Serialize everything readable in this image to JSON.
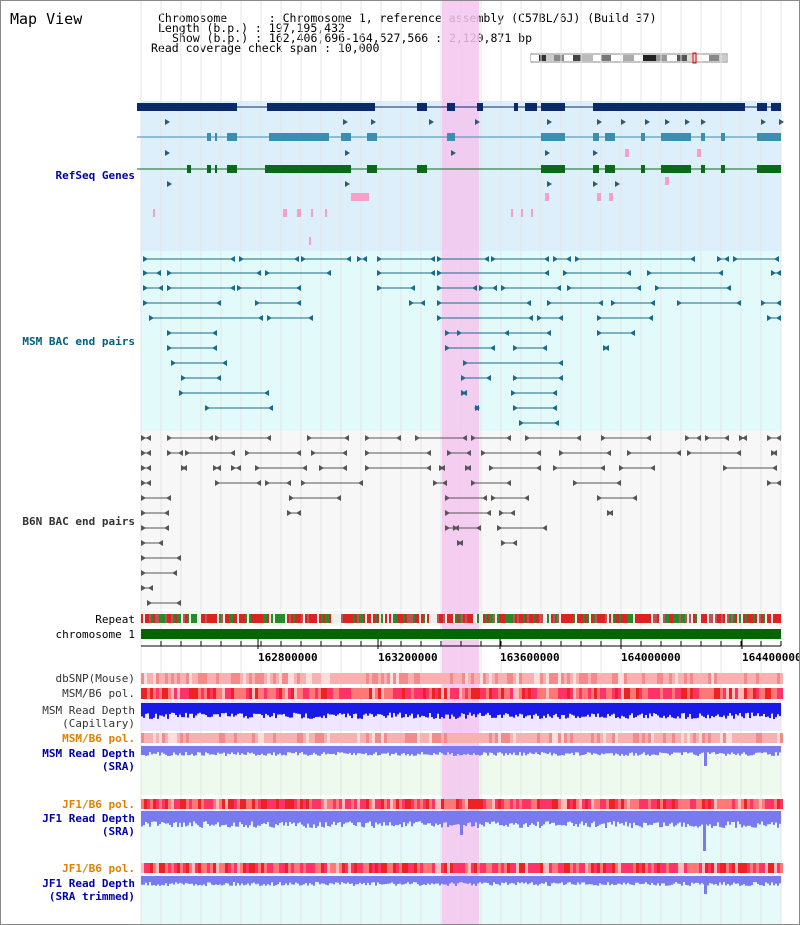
{
  "title": "Map View",
  "info": {
    "chromosome": "Chromosome      : Chromosome 1, reference assembly (C57BL/6J) (Build 37)",
    "length": "Length (b.p.) : 197,195,432",
    "show": "Show (b.p.) : 162,406,696-164,527,566 : 2,120,871 bp",
    "read_coverage": "Read coverage check span : 10,000"
  },
  "tracks": {
    "refseq": "RefSeq Genes",
    "msm_bac": "MSM BAC end pairs",
    "b6n_bac": "B6N BAC end pairs",
    "repeat": "Repeat",
    "chromosome": "chromosome 1",
    "dbsnp": "dbSNP(Mouse)",
    "msm_b6_pol": "MSM/B6 pol.",
    "msm_depth_cap_1": "MSM Read Depth",
    "msm_depth_cap_2": "(Capillary)",
    "msm_b6_pol_2": "MSM/B6 pol.",
    "msm_depth_sra_1": "MSM Read Depth",
    "msm_depth_sra_2": "(SRA)",
    "jf1_b6_pol": "JF1/B6 pol.",
    "jf1_depth_sra_1": "JF1 Read Depth",
    "jf1_depth_sra_2": "(SRA)",
    "jf1_b6_pol_2": "JF1/B6 pol.",
    "jf1_depth_trim_1": "JF1 Read Depth",
    "jf1_depth_trim_2": "(SRA trimmed)"
  },
  "axis_ticks": [
    "162800000",
    "163200000",
    "163600000",
    "164000000",
    "164400000"
  ],
  "colors": {
    "refseq_label": "#0000aa",
    "msm_bac_label": "#006080",
    "b6n_bac_label": "#333333",
    "pol_label": "#e08000",
    "depth_label": "#0000aa",
    "highlight": "#f5c6ee",
    "refseq_bg": "#dceffa",
    "msm_bg": "#e3fafa",
    "b6n_bg": "#f7f7f7",
    "chromosome_bar": "#006600"
  }
}
